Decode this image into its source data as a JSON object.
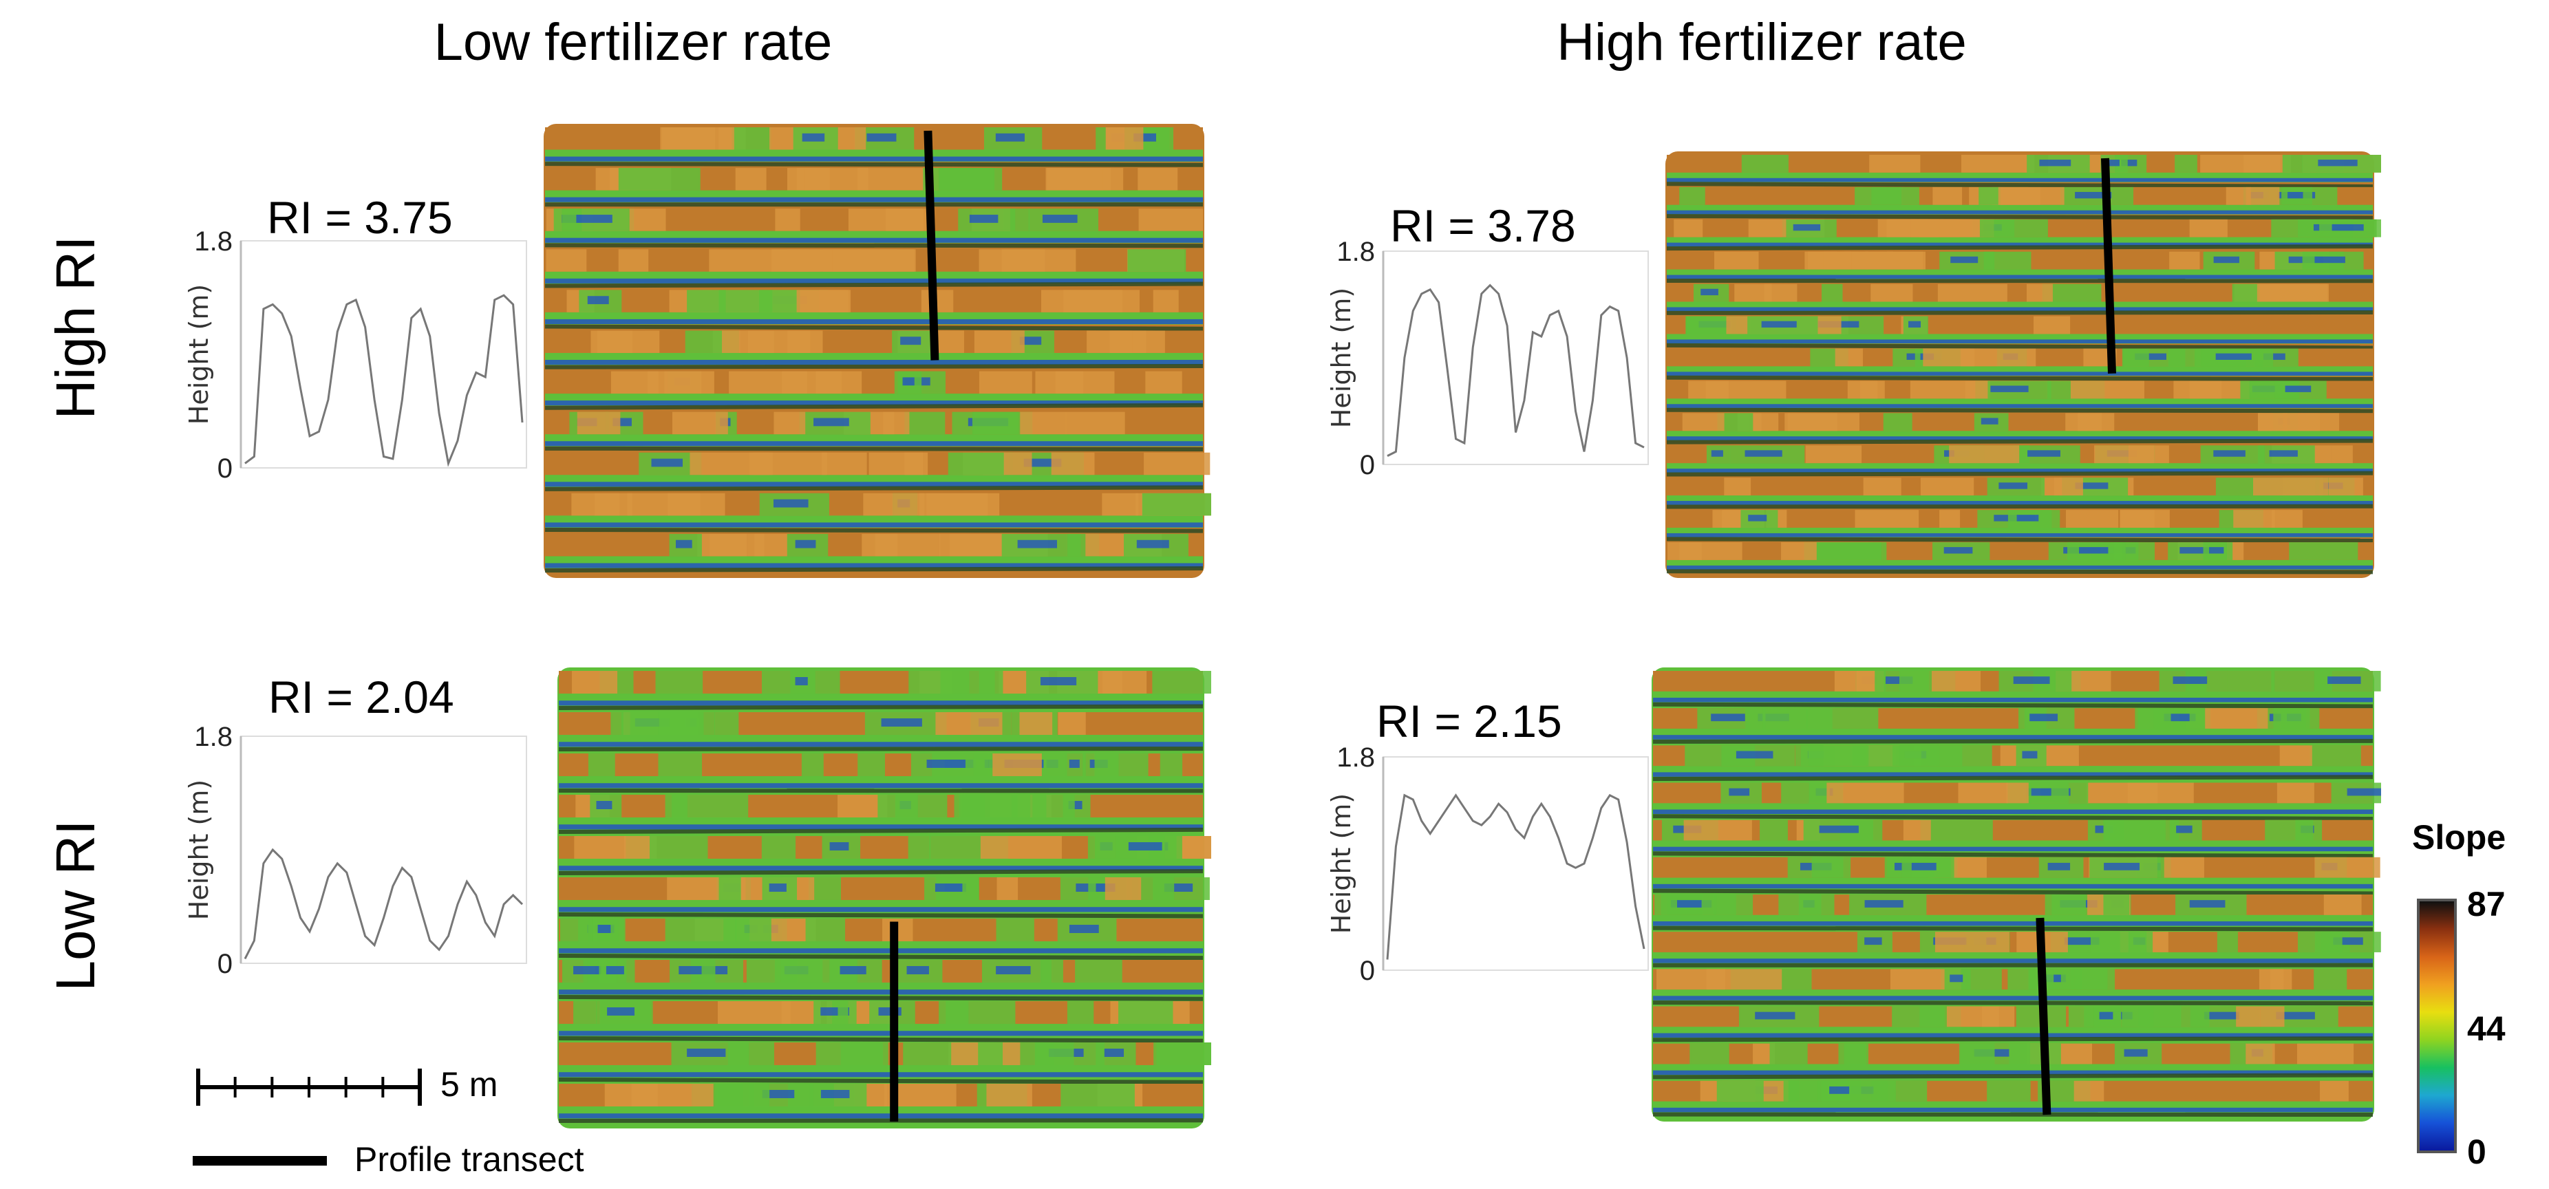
{
  "columns": [
    "Low fertilizer rate",
    "High fertilizer rate"
  ],
  "rows": [
    "High RI",
    "Low RI"
  ],
  "panels": [
    {
      "ri_label": "RI = 3.75",
      "y_top": "1.8",
      "y_bottom": "0",
      "ylabel": "Height (m)",
      "profile": [
        0.02,
        0.05,
        0.7,
        0.72,
        0.68,
        0.58,
        0.35,
        0.14,
        0.16,
        0.3,
        0.6,
        0.72,
        0.74,
        0.62,
        0.3,
        0.05,
        0.04,
        0.3,
        0.66,
        0.7,
        0.58,
        0.24,
        0.02,
        0.12,
        0.32,
        0.42,
        0.4,
        0.74,
        0.76,
        0.72,
        0.2
      ]
    },
    {
      "ri_label": "RI = 3.78",
      "y_top": "1.8",
      "y_bottom": "0",
      "ylabel": "Height (m)",
      "profile": [
        0.04,
        0.06,
        0.5,
        0.72,
        0.8,
        0.82,
        0.76,
        0.45,
        0.12,
        0.1,
        0.55,
        0.8,
        0.84,
        0.8,
        0.65,
        0.15,
        0.3,
        0.62,
        0.6,
        0.7,
        0.72,
        0.6,
        0.25,
        0.06,
        0.3,
        0.7,
        0.74,
        0.72,
        0.5,
        0.1,
        0.08
      ]
    },
    {
      "ri_label": "RI = 2.04",
      "y_top": "1.8",
      "y_bottom": "0",
      "ylabel": "Height (m)",
      "profile": [
        0.02,
        0.1,
        0.44,
        0.5,
        0.46,
        0.34,
        0.2,
        0.14,
        0.24,
        0.38,
        0.44,
        0.4,
        0.26,
        0.12,
        0.08,
        0.2,
        0.34,
        0.42,
        0.38,
        0.24,
        0.1,
        0.06,
        0.12,
        0.26,
        0.36,
        0.3,
        0.18,
        0.12,
        0.26,
        0.3,
        0.26
      ]
    },
    {
      "ri_label": "RI = 2.15",
      "y_top": "1.8",
      "y_bottom": "0",
      "ylabel": "Height (m)",
      "profile": [
        0.05,
        0.58,
        0.82,
        0.8,
        0.7,
        0.64,
        0.7,
        0.76,
        0.82,
        0.76,
        0.7,
        0.68,
        0.72,
        0.78,
        0.74,
        0.66,
        0.62,
        0.72,
        0.78,
        0.72,
        0.62,
        0.5,
        0.48,
        0.5,
        0.62,
        0.76,
        0.82,
        0.8,
        0.6,
        0.3,
        0.1
      ]
    }
  ],
  "maps": [
    {
      "ribbons": 11,
      "green_share": 0.25,
      "transect": "upper"
    },
    {
      "ribbons": 13,
      "green_share": 0.5,
      "transect": "upper"
    },
    {
      "ribbons": 11,
      "green_share": 0.72,
      "transect": "lower"
    },
    {
      "ribbons": 12,
      "green_share": 0.72,
      "transect": "lower"
    }
  ],
  "scale_bar": {
    "label": "5 m",
    "segments": 6
  },
  "transect_legend": "Profile transect",
  "colorbar": {
    "title": "Slope",
    "max": "87",
    "mid": "44",
    "min": "0",
    "stops": [
      "#0a1a9e",
      "#1652d8",
      "#1ea8d0",
      "#18c060",
      "#8fd420",
      "#e8de10",
      "#f0a020",
      "#d86418",
      "#8a3010",
      "#101010"
    ]
  },
  "colors": {
    "orange": "#c07a2c",
    "green": "#5fbf3a",
    "blue": "#1f4fc8",
    "dark": "#2f4a24",
    "line": "#777777"
  }
}
